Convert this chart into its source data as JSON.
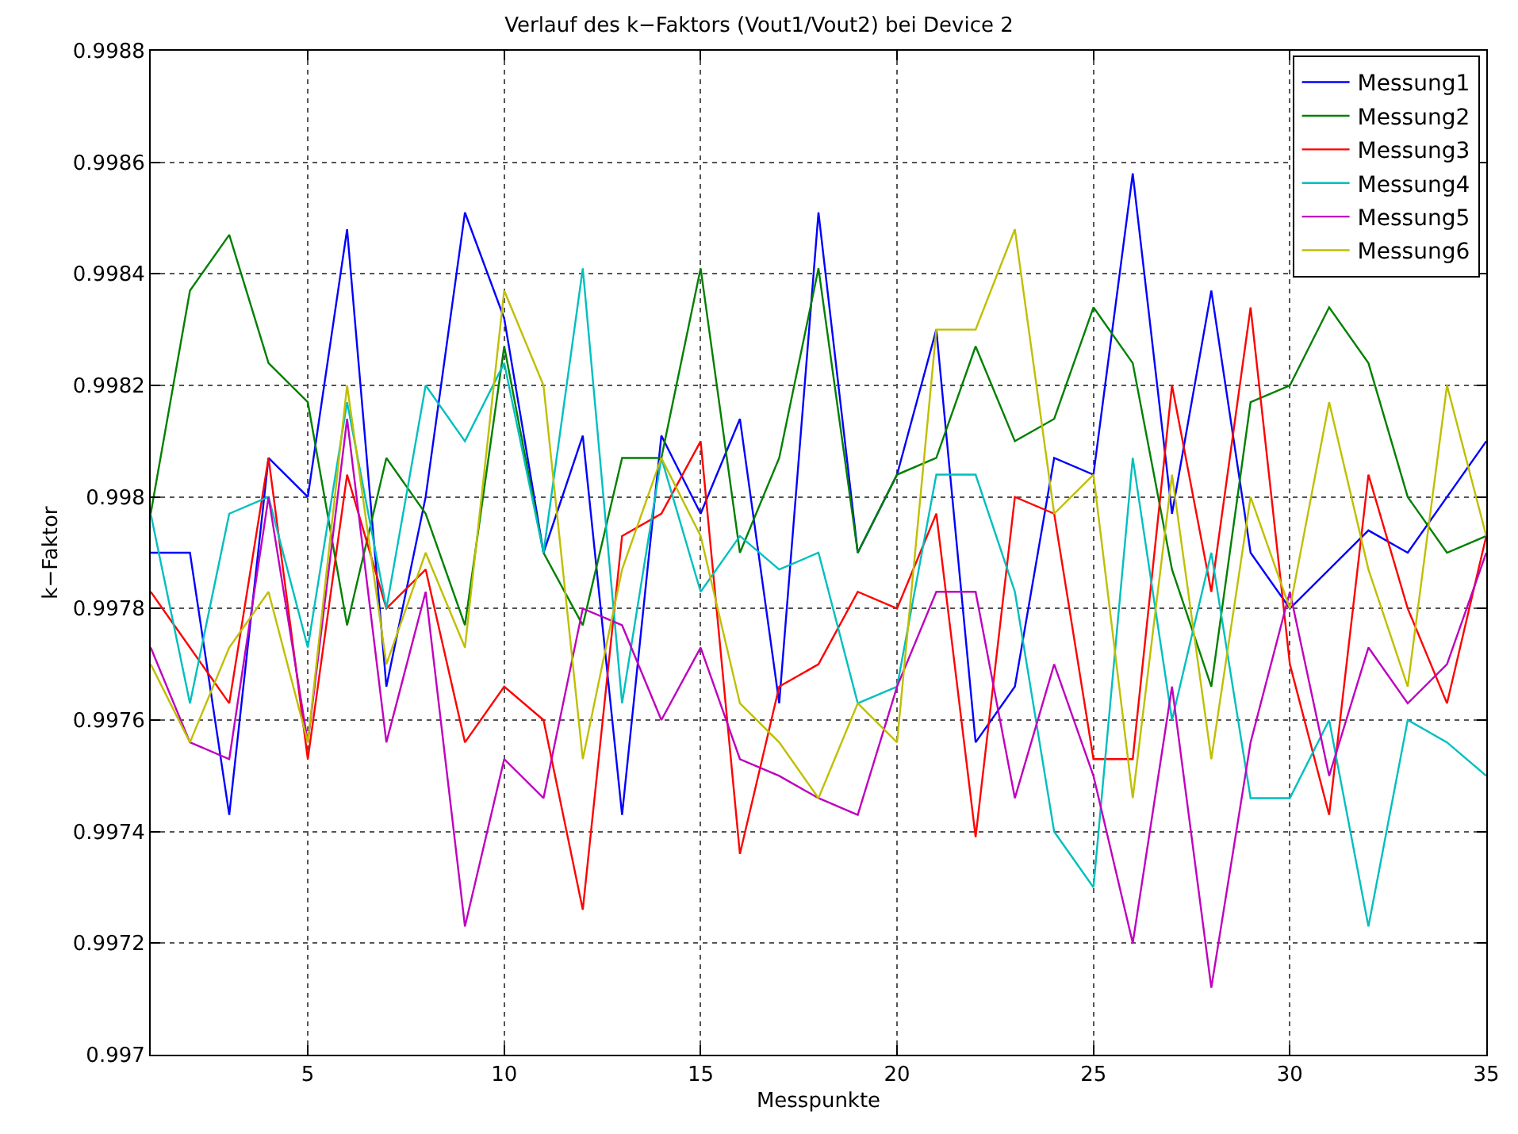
{
  "chart_data": {
    "type": "line",
    "title": "Verlauf des k−Faktors (Vout1/Vout2) bei Device 2",
    "xlabel": "Messpunkte",
    "ylabel": "k−Faktor",
    "x": [
      1,
      2,
      3,
      4,
      5,
      6,
      7,
      8,
      9,
      10,
      11,
      12,
      13,
      14,
      15,
      16,
      17,
      18,
      19,
      20,
      21,
      22,
      23,
      24,
      25,
      26,
      27,
      28,
      29,
      30,
      31,
      32,
      33,
      34,
      35
    ],
    "xlim": [
      1,
      35
    ],
    "xticks": [
      5,
      10,
      15,
      20,
      25,
      30,
      35
    ],
    "ylim": [
      0.997,
      0.9988
    ],
    "yticks": [
      0.997,
      0.9972,
      0.9974,
      0.9976,
      0.9978,
      0.998,
      0.9982,
      0.9984,
      0.9986,
      0.9988
    ],
    "grid": true,
    "legend": "top right",
    "line_style": "solid",
    "marker": "none",
    "series": [
      {
        "name": "Messung1",
        "color": "#0000ff",
        "values": [
          0.9979,
          0.9979,
          0.99743,
          0.99807,
          0.998,
          0.99848,
          0.99766,
          0.998,
          0.99851,
          0.99832,
          0.9979,
          0.99811,
          0.99743,
          0.99811,
          0.99797,
          0.99814,
          0.99763,
          0.99851,
          0.9979,
          0.99804,
          0.9983,
          0.99756,
          0.99766,
          0.99807,
          0.99804,
          0.99858,
          0.99797,
          0.99837,
          0.9979,
          0.9978,
          0.99787,
          0.99794,
          0.9979,
          0.998,
          0.9981
        ]
      },
      {
        "name": "Messung2",
        "color": "#008000",
        "values": [
          0.99797,
          0.99837,
          0.99847,
          0.99824,
          0.99817,
          0.99777,
          0.99807,
          0.99797,
          0.99777,
          0.99827,
          0.9979,
          0.99777,
          0.99807,
          0.99807,
          0.99841,
          0.9979,
          0.99807,
          0.99841,
          0.9979,
          0.99804,
          0.99807,
          0.99827,
          0.9981,
          0.99814,
          0.99834,
          0.99824,
          0.99787,
          0.99766,
          0.99817,
          0.9982,
          0.99834,
          0.99824,
          0.998,
          0.9979,
          0.99793
        ]
      },
      {
        "name": "Messung3",
        "color": "#ff0000",
        "values": [
          0.99783,
          0.99773,
          0.99763,
          0.99807,
          0.99753,
          0.99804,
          0.9978,
          0.99787,
          0.99756,
          0.99766,
          0.9976,
          0.99726,
          0.99793,
          0.99797,
          0.9981,
          0.99736,
          0.99766,
          0.9977,
          0.99783,
          0.9978,
          0.99797,
          0.99739,
          0.998,
          0.99797,
          0.99753,
          0.99753,
          0.9982,
          0.99783,
          0.99834,
          0.9977,
          0.99743,
          0.99804,
          0.9978,
          0.99763,
          0.99793
        ]
      },
      {
        "name": "Messung4",
        "color": "#00bfbf",
        "values": [
          0.99797,
          0.99763,
          0.99797,
          0.998,
          0.99773,
          0.99817,
          0.9978,
          0.9982,
          0.9981,
          0.99824,
          0.9979,
          0.99841,
          0.99763,
          0.99807,
          0.99783,
          0.99793,
          0.99787,
          0.9979,
          0.99763,
          0.99766,
          0.99804,
          0.99804,
          0.99783,
          0.9974,
          0.9973,
          0.99807,
          0.9976,
          0.9979,
          0.99746,
          0.99746,
          0.9976,
          0.99723,
          0.9976,
          0.99756,
          0.9975
        ]
      },
      {
        "name": "Messung5",
        "color": "#bf00bf",
        "values": [
          0.99773,
          0.99756,
          0.99753,
          0.998,
          0.99756,
          0.99814,
          0.99756,
          0.99783,
          0.99723,
          0.99753,
          0.99746,
          0.9978,
          0.99777,
          0.9976,
          0.99773,
          0.99753,
          0.9975,
          0.99746,
          0.99743,
          0.99766,
          0.99783,
          0.99783,
          0.99746,
          0.9977,
          0.9975,
          0.9972,
          0.99766,
          0.99712,
          0.99756,
          0.99783,
          0.9975,
          0.99773,
          0.99763,
          0.9977,
          0.9979
        ]
      },
      {
        "name": "Messung6",
        "color": "#bfbf00",
        "values": [
          0.9977,
          0.99756,
          0.99773,
          0.99783,
          0.99756,
          0.9982,
          0.9977,
          0.9979,
          0.99773,
          0.99837,
          0.9982,
          0.99753,
          0.99787,
          0.99807,
          0.99793,
          0.99763,
          0.99756,
          0.99746,
          0.99763,
          0.99756,
          0.9983,
          0.9983,
          0.99848,
          0.99797,
          0.99804,
          0.99746,
          0.99804,
          0.99753,
          0.998,
          0.9978,
          0.99817,
          0.99787,
          0.99766,
          0.9982,
          0.99793
        ]
      }
    ]
  }
}
